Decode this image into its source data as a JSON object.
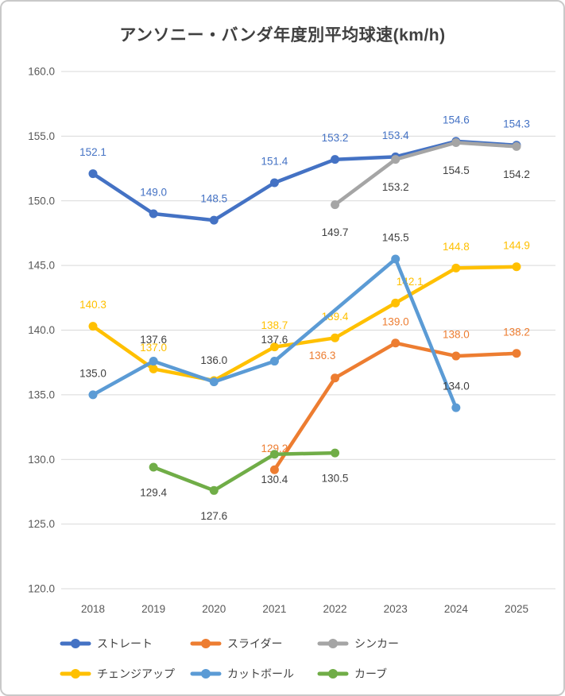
{
  "title": "アンソニー・バンダ年度別平均球速(km/h)",
  "colors": {
    "grid": "#d9d9d9",
    "axis_text": "#595959",
    "title_text": "#404040",
    "dark_label": "#404040",
    "frame_border": "#c9c9c9",
    "background": "#ffffff"
  },
  "chart_data": {
    "type": "line",
    "title": "アンソニー・バンダ年度別平均球速(km/h)",
    "categories": [
      "2018",
      "2019",
      "2020",
      "2021",
      "2022",
      "2023",
      "2024",
      "2025"
    ],
    "y_axis": {
      "min": 120,
      "max": 160,
      "step": 5,
      "tick_labels": [
        "160.0",
        "155.0",
        "150.0",
        "145.0",
        "140.0",
        "135.0",
        "130.0",
        "125.0",
        "120.0"
      ]
    },
    "grid": true,
    "legend_position": "bottom",
    "legend_columns": 3,
    "series": [
      {
        "key": "straight",
        "label": "ストレート",
        "color": "#4472C4",
        "label_color": "#4472C4",
        "label_position": "above",
        "values": [
          152.1,
          149.0,
          148.5,
          151.4,
          153.2,
          153.4,
          154.6,
          154.3
        ],
        "labels": [
          "152.1",
          "149.0",
          "148.5",
          "151.4",
          "153.2",
          "153.4",
          "154.6",
          "154.3"
        ]
      },
      {
        "key": "slider",
        "label": "スライダー",
        "color": "#ED7D31",
        "label_color": "#ED7D31",
        "label_position": "above",
        "values": [
          null,
          null,
          null,
          129.2,
          136.3,
          139.0,
          138.0,
          138.2
        ],
        "labels": [
          null,
          null,
          null,
          "129.2",
          "136.3",
          "139.0",
          "138.0",
          "138.2"
        ],
        "label_overrides": {
          "4": {
            "dx": -16,
            "dy": -28
          }
        }
      },
      {
        "key": "sinker",
        "label": "シンカー",
        "color": "#A5A5A5",
        "label_color": "#404040",
        "label_position": "below",
        "label_dy": 35,
        "values": [
          null,
          null,
          null,
          null,
          149.7,
          153.2,
          154.5,
          154.2
        ],
        "labels": [
          null,
          null,
          null,
          null,
          "149.7",
          "153.2",
          "154.5",
          "154.2"
        ]
      },
      {
        "key": "changeup",
        "label": "チェンジアップ",
        "color": "#FFC000",
        "label_color": "#FFC000",
        "label_position": "above",
        "values": [
          140.3,
          137.0,
          136.1,
          138.7,
          139.4,
          142.1,
          144.8,
          144.9
        ],
        "labels": [
          "140.3",
          "137.0",
          null,
          "138.7",
          "139.4",
          "142.1",
          "144.8",
          "144.9"
        ],
        "label_overrides": {
          "5": {
            "dx": 18
          }
        }
      },
      {
        "key": "cutter",
        "label": "カットボール",
        "color": "#5B9BD5",
        "label_color": "#404040",
        "label_position": "above",
        "values": [
          135.0,
          137.6,
          136.0,
          137.6,
          null,
          145.5,
          134.0,
          null
        ],
        "labels": [
          "135.0",
          "137.6",
          "136.0",
          "137.6",
          null,
          "145.5",
          "134.0",
          null
        ]
      },
      {
        "key": "curve",
        "label": "カーブ",
        "color": "#70AD47",
        "label_color": "#404040",
        "label_position": "below",
        "label_dy": 32,
        "values": [
          null,
          129.4,
          127.6,
          130.4,
          130.5,
          null,
          null,
          null
        ],
        "labels": [
          null,
          "129.4",
          "127.6",
          "130.4",
          "130.5",
          null,
          null,
          null
        ]
      }
    ]
  }
}
